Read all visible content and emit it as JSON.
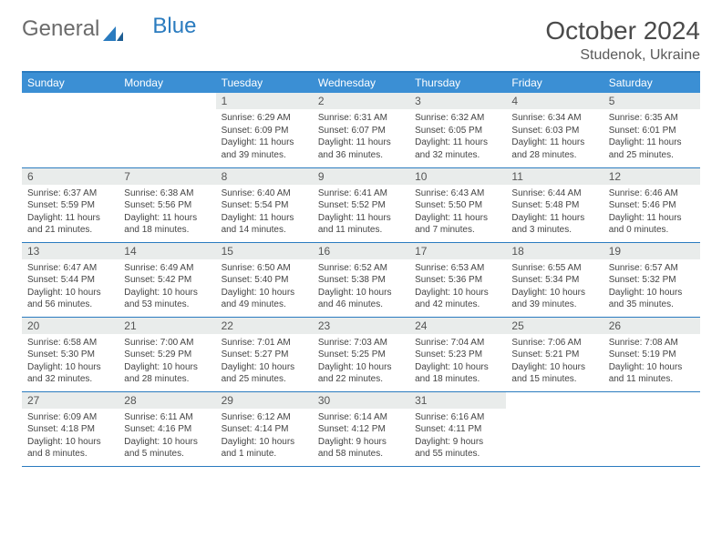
{
  "logo": {
    "text1": "General",
    "text2": "Blue"
  },
  "title": {
    "month": "October 2024",
    "location": "Studenok, Ukraine"
  },
  "colors": {
    "header_bg": "#3b8fd4",
    "header_text": "#ffffff",
    "rule": "#2a7bbf",
    "daynum_bg": "#e9eceb",
    "daynum_text": "#555555",
    "body_text": "#444444"
  },
  "columns": [
    "Sunday",
    "Monday",
    "Tuesday",
    "Wednesday",
    "Thursday",
    "Friday",
    "Saturday"
  ],
  "weeks": [
    [
      null,
      null,
      {
        "n": "1",
        "sr": "6:29 AM",
        "ss": "6:09 PM",
        "dl": "11 hours and 39 minutes."
      },
      {
        "n": "2",
        "sr": "6:31 AM",
        "ss": "6:07 PM",
        "dl": "11 hours and 36 minutes."
      },
      {
        "n": "3",
        "sr": "6:32 AM",
        "ss": "6:05 PM",
        "dl": "11 hours and 32 minutes."
      },
      {
        "n": "4",
        "sr": "6:34 AM",
        "ss": "6:03 PM",
        "dl": "11 hours and 28 minutes."
      },
      {
        "n": "5",
        "sr": "6:35 AM",
        "ss": "6:01 PM",
        "dl": "11 hours and 25 minutes."
      }
    ],
    [
      {
        "n": "6",
        "sr": "6:37 AM",
        "ss": "5:59 PM",
        "dl": "11 hours and 21 minutes."
      },
      {
        "n": "7",
        "sr": "6:38 AM",
        "ss": "5:56 PM",
        "dl": "11 hours and 18 minutes."
      },
      {
        "n": "8",
        "sr": "6:40 AM",
        "ss": "5:54 PM",
        "dl": "11 hours and 14 minutes."
      },
      {
        "n": "9",
        "sr": "6:41 AM",
        "ss": "5:52 PM",
        "dl": "11 hours and 11 minutes."
      },
      {
        "n": "10",
        "sr": "6:43 AM",
        "ss": "5:50 PM",
        "dl": "11 hours and 7 minutes."
      },
      {
        "n": "11",
        "sr": "6:44 AM",
        "ss": "5:48 PM",
        "dl": "11 hours and 3 minutes."
      },
      {
        "n": "12",
        "sr": "6:46 AM",
        "ss": "5:46 PM",
        "dl": "11 hours and 0 minutes."
      }
    ],
    [
      {
        "n": "13",
        "sr": "6:47 AM",
        "ss": "5:44 PM",
        "dl": "10 hours and 56 minutes."
      },
      {
        "n": "14",
        "sr": "6:49 AM",
        "ss": "5:42 PM",
        "dl": "10 hours and 53 minutes."
      },
      {
        "n": "15",
        "sr": "6:50 AM",
        "ss": "5:40 PM",
        "dl": "10 hours and 49 minutes."
      },
      {
        "n": "16",
        "sr": "6:52 AM",
        "ss": "5:38 PM",
        "dl": "10 hours and 46 minutes."
      },
      {
        "n": "17",
        "sr": "6:53 AM",
        "ss": "5:36 PM",
        "dl": "10 hours and 42 minutes."
      },
      {
        "n": "18",
        "sr": "6:55 AM",
        "ss": "5:34 PM",
        "dl": "10 hours and 39 minutes."
      },
      {
        "n": "19",
        "sr": "6:57 AM",
        "ss": "5:32 PM",
        "dl": "10 hours and 35 minutes."
      }
    ],
    [
      {
        "n": "20",
        "sr": "6:58 AM",
        "ss": "5:30 PM",
        "dl": "10 hours and 32 minutes."
      },
      {
        "n": "21",
        "sr": "7:00 AM",
        "ss": "5:29 PM",
        "dl": "10 hours and 28 minutes."
      },
      {
        "n": "22",
        "sr": "7:01 AM",
        "ss": "5:27 PM",
        "dl": "10 hours and 25 minutes."
      },
      {
        "n": "23",
        "sr": "7:03 AM",
        "ss": "5:25 PM",
        "dl": "10 hours and 22 minutes."
      },
      {
        "n": "24",
        "sr": "7:04 AM",
        "ss": "5:23 PM",
        "dl": "10 hours and 18 minutes."
      },
      {
        "n": "25",
        "sr": "7:06 AM",
        "ss": "5:21 PM",
        "dl": "10 hours and 15 minutes."
      },
      {
        "n": "26",
        "sr": "7:08 AM",
        "ss": "5:19 PM",
        "dl": "10 hours and 11 minutes."
      }
    ],
    [
      {
        "n": "27",
        "sr": "6:09 AM",
        "ss": "4:18 PM",
        "dl": "10 hours and 8 minutes."
      },
      {
        "n": "28",
        "sr": "6:11 AM",
        "ss": "4:16 PM",
        "dl": "10 hours and 5 minutes."
      },
      {
        "n": "29",
        "sr": "6:12 AM",
        "ss": "4:14 PM",
        "dl": "10 hours and 1 minute."
      },
      {
        "n": "30",
        "sr": "6:14 AM",
        "ss": "4:12 PM",
        "dl": "9 hours and 58 minutes."
      },
      {
        "n": "31",
        "sr": "6:16 AM",
        "ss": "4:11 PM",
        "dl": "9 hours and 55 minutes."
      },
      null,
      null
    ]
  ],
  "labels": {
    "sunrise": "Sunrise:",
    "sunset": "Sunset:",
    "daylight": "Daylight:"
  }
}
